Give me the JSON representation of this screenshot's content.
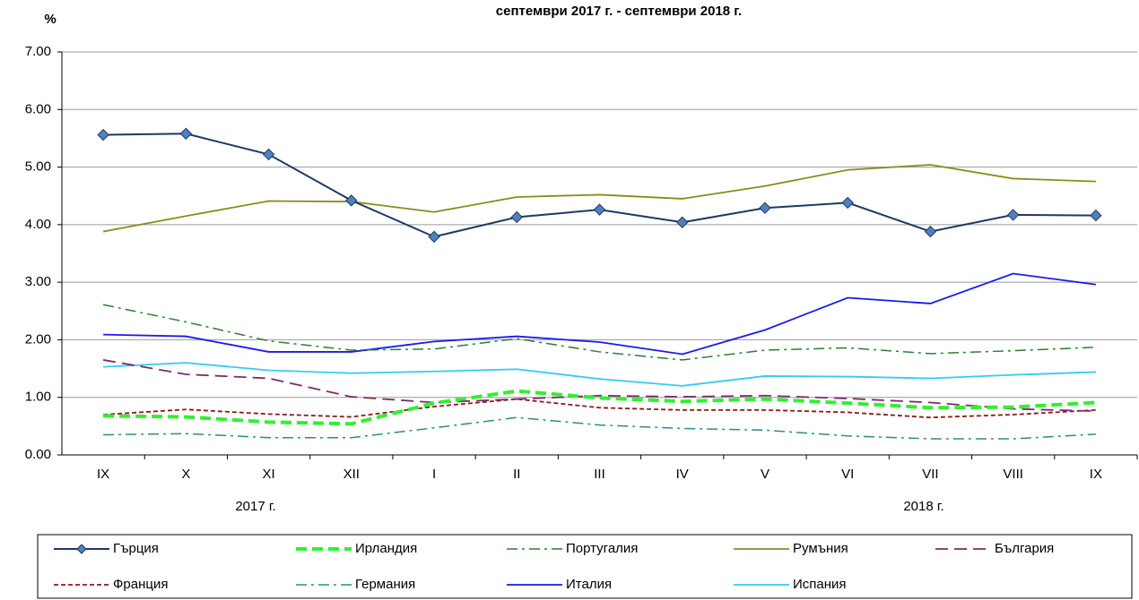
{
  "chart_data": {
    "type": "line",
    "title": "септември 2017 г. - септември 2018 г.",
    "y_label": "%",
    "categories": [
      "IX",
      "X",
      "XI",
      "XII",
      "I",
      "II",
      "III",
      "IV",
      "V",
      "VI",
      "VII",
      "VIII",
      "IX"
    ],
    "annotations": [
      "2017 г.",
      "2018 г."
    ],
    "ylim": [
      0,
      7
    ],
    "yticks": [
      {
        "value": 0,
        "label": "0.00"
      },
      {
        "value": 1,
        "label": "1.00"
      },
      {
        "value": 2,
        "label": "2.00"
      },
      {
        "value": 3,
        "label": "3.00"
      },
      {
        "value": 4,
        "label": "4.00"
      },
      {
        "value": 5,
        "label": "5.00"
      },
      {
        "value": 6,
        "label": "6.00"
      },
      {
        "value": 7,
        "label": "7.00"
      }
    ],
    "grid": true,
    "series": [
      {
        "name": "Гърция",
        "color": "#1f3864",
        "dash": "",
        "width": 2,
        "marker": "diamond",
        "values": [
          5.56,
          5.58,
          5.22,
          4.42,
          3.79,
          4.13,
          4.26,
          4.04,
          4.29,
          4.38,
          3.88,
          4.17,
          4.16
        ]
      },
      {
        "name": "Ирландия",
        "color": "#33ee33",
        "dash": "12 6",
        "width": 4,
        "values": [
          0.68,
          0.66,
          0.57,
          0.54,
          0.9,
          1.11,
          0.99,
          0.93,
          0.97,
          0.9,
          0.82,
          0.83,
          0.91
        ]
      },
      {
        "name": "Португалия",
        "color": "#2e7d32",
        "dash": "12 5 3 5",
        "width": 1.5,
        "values": [
          2.61,
          2.31,
          1.98,
          1.82,
          1.84,
          2.02,
          1.79,
          1.65,
          1.82,
          1.86,
          1.76,
          1.81,
          1.87
        ]
      },
      {
        "name": "Румъния",
        "color": "#8b8b1a",
        "dash": "",
        "width": 1.8,
        "values": [
          3.88,
          4.15,
          4.41,
          4.4,
          4.22,
          4.48,
          4.52,
          4.45,
          4.67,
          4.95,
          5.04,
          4.8,
          4.75
        ]
      },
      {
        "name": "България",
        "color": "#7b2c6b",
        "dash": "14 7",
        "width": 1.8,
        "values": [
          1.65,
          1.4,
          1.33,
          1.01,
          0.91,
          0.97,
          1.03,
          1.01,
          1.03,
          0.98,
          0.91,
          0.8,
          0.76
        ]
      },
      {
        "name": "Франция",
        "color": "#8b1a1a",
        "dash": "5 3",
        "width": 1.8,
        "values": [
          0.7,
          0.79,
          0.71,
          0.66,
          0.84,
          0.97,
          0.82,
          0.78,
          0.78,
          0.74,
          0.65,
          0.7,
          0.78
        ]
      },
      {
        "name": "Германия",
        "color": "#2e8b8b",
        "dash": "12 5 3 5",
        "width": 1.5,
        "values": [
          0.35,
          0.37,
          0.3,
          0.3,
          0.47,
          0.65,
          0.52,
          0.46,
          0.43,
          0.33,
          0.28,
          0.28,
          0.36
        ]
      },
      {
        "name": "Италия",
        "color": "#1a1aee",
        "dash": "",
        "width": 1.8,
        "values": [
          2.09,
          2.06,
          1.79,
          1.79,
          1.97,
          2.06,
          1.96,
          1.75,
          2.17,
          2.73,
          2.63,
          3.15,
          2.96
        ]
      },
      {
        "name": "Испания",
        "color": "#33ccee",
        "dash": "",
        "width": 1.8,
        "values": [
          1.53,
          1.6,
          1.47,
          1.42,
          1.45,
          1.49,
          1.32,
          1.2,
          1.37,
          1.36,
          1.33,
          1.39,
          1.44
        ]
      }
    ]
  }
}
